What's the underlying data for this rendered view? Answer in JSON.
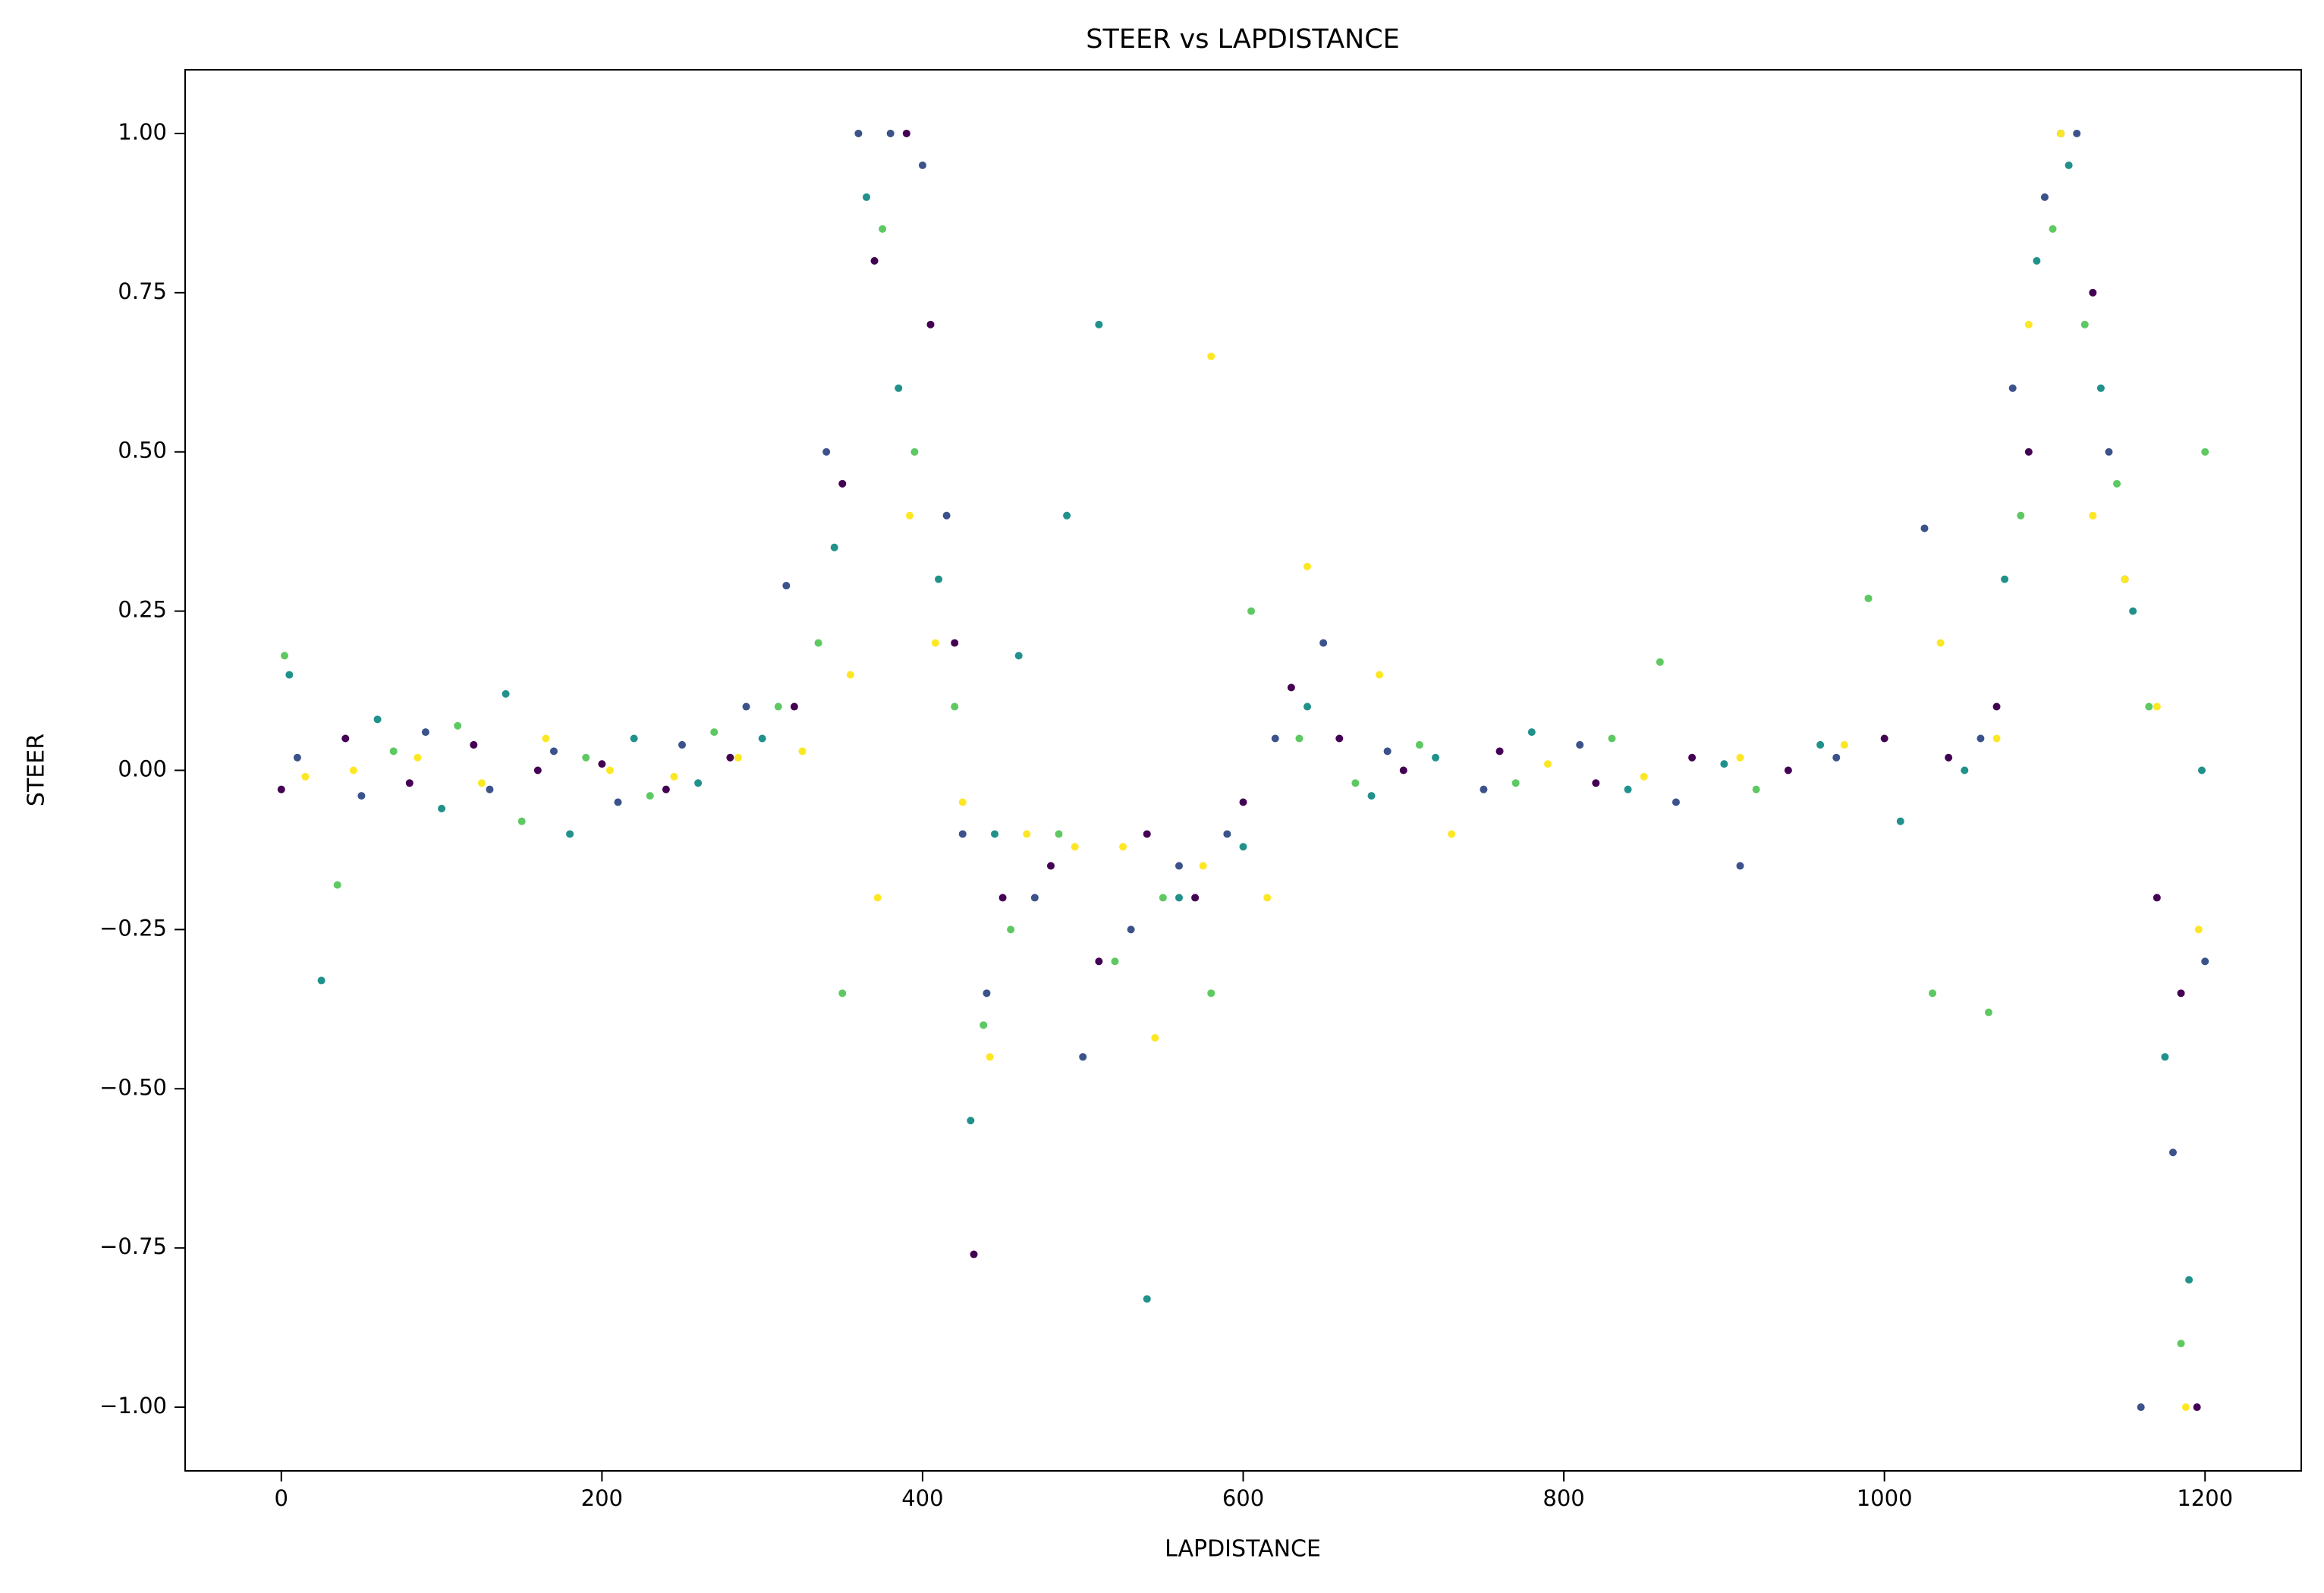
{
  "chart_data": {
    "type": "scatter",
    "title": "STEER vs LAPDISTANCE",
    "xlabel": "LAPDISTANCE",
    "ylabel": "STEER",
    "xlim": [
      -60,
      1260
    ],
    "ylim": [
      -1.1,
      1.1
    ],
    "xticks": [
      0,
      200,
      400,
      600,
      800,
      1000,
      1200
    ],
    "yticks": [
      {
        "value": -1,
        "label": "−1.00"
      },
      {
        "value": -0.75,
        "label": "−0.75"
      },
      {
        "value": -0.5,
        "label": "−0.50"
      },
      {
        "value": -0.25,
        "label": "−0.25"
      },
      {
        "value": 0,
        "label": "0.00"
      },
      {
        "value": 0.25,
        "label": "0.25"
      },
      {
        "value": 0.5,
        "label": "0.50"
      },
      {
        "value": 0.75,
        "label": "0.75"
      },
      {
        "value": 1,
        "label": "1.00"
      }
    ],
    "grid": false,
    "series": [
      {
        "color": "#440154",
        "x": [
          0,
          40,
          80,
          120,
          160,
          200,
          240,
          280,
          320,
          350,
          370,
          390,
          405,
          420,
          432,
          450,
          480,
          510,
          540,
          570,
          600,
          630,
          660,
          700,
          760,
          820,
          880,
          940,
          1000,
          1040,
          1070,
          1090,
          1110,
          1130,
          1150,
          1170,
          1185,
          1195
        ],
        "values": [
          -0.03,
          0.05,
          -0.02,
          0.04,
          0.0,
          0.01,
          -0.03,
          0.02,
          0.1,
          0.45,
          0.8,
          1.0,
          0.7,
          0.2,
          -0.76,
          -0.2,
          -0.15,
          -0.3,
          -0.1,
          -0.2,
          -0.05,
          0.13,
          0.05,
          0.0,
          0.03,
          -0.02,
          0.02,
          0.0,
          0.05,
          0.02,
          0.1,
          0.5,
          1.0,
          0.75,
          0.3,
          -0.2,
          -0.35,
          -1.0
        ]
      },
      {
        "color": "#3b528b",
        "x": [
          10,
          50,
          90,
          130,
          170,
          210,
          250,
          290,
          315,
          340,
          360,
          380,
          400,
          415,
          425,
          440,
          470,
          500,
          530,
          560,
          590,
          620,
          650,
          690,
          750,
          810,
          870,
          910,
          970,
          1025,
          1060,
          1080,
          1100,
          1120,
          1140,
          1160,
          1180,
          1200
        ],
        "values": [
          0.02,
          -0.04,
          0.06,
          -0.03,
          0.03,
          -0.05,
          0.04,
          0.1,
          0.29,
          0.5,
          1.0,
          1.0,
          0.95,
          0.4,
          -0.1,
          -0.35,
          -0.2,
          -0.45,
          -0.25,
          -0.15,
          -0.1,
          0.05,
          0.2,
          0.03,
          -0.03,
          0.04,
          -0.05,
          -0.15,
          0.02,
          0.38,
          0.05,
          0.6,
          0.9,
          1.0,
          0.5,
          -1.0,
          -0.6,
          -0.3
        ]
      },
      {
        "color": "#21918c",
        "x": [
          5,
          25,
          60,
          100,
          140,
          180,
          220,
          260,
          300,
          345,
          365,
          385,
          410,
          430,
          445,
          460,
          490,
          510,
          540,
          560,
          600,
          640,
          680,
          720,
          780,
          840,
          900,
          960,
          1010,
          1050,
          1075,
          1095,
          1115,
          1135,
          1155,
          1175,
          1190,
          1198
        ],
        "values": [
          0.15,
          -0.33,
          0.08,
          -0.06,
          0.12,
          -0.1,
          0.05,
          -0.02,
          0.05,
          0.35,
          0.9,
          0.6,
          0.3,
          -0.55,
          -0.1,
          0.18,
          0.4,
          0.7,
          -0.83,
          -0.2,
          -0.12,
          0.1,
          -0.04,
          0.02,
          0.06,
          -0.03,
          0.01,
          0.04,
          -0.08,
          0.0,
          0.3,
          0.8,
          0.95,
          0.6,
          0.25,
          -0.45,
          -0.8,
          0.0
        ]
      },
      {
        "color": "#5ec962",
        "x": [
          2,
          35,
          70,
          110,
          150,
          190,
          230,
          270,
          310,
          335,
          350,
          375,
          395,
          420,
          438,
          455,
          485,
          520,
          550,
          580,
          605,
          635,
          670,
          710,
          770,
          830,
          860,
          920,
          990,
          1030,
          1065,
          1085,
          1105,
          1125,
          1145,
          1165,
          1185,
          1200
        ],
        "values": [
          0.18,
          -0.18,
          0.03,
          0.07,
          -0.08,
          0.02,
          -0.04,
          0.06,
          0.1,
          0.2,
          -0.35,
          0.85,
          0.5,
          0.1,
          -0.4,
          -0.25,
          -0.1,
          -0.3,
          -0.2,
          -0.35,
          0.25,
          0.05,
          -0.02,
          0.04,
          -0.02,
          0.05,
          0.17,
          -0.03,
          0.27,
          -0.35,
          -0.38,
          0.4,
          0.85,
          0.7,
          0.45,
          0.1,
          -0.9,
          0.5
        ]
      },
      {
        "color": "#fde725",
        "x": [
          15,
          45,
          85,
          125,
          165,
          205,
          245,
          285,
          325,
          355,
          372,
          392,
          408,
          425,
          442,
          465,
          495,
          525,
          545,
          575,
          580,
          615,
          640,
          685,
          730,
          790,
          850,
          910,
          975,
          1035,
          1070,
          1090,
          1110,
          1130,
          1150,
          1170,
          1188,
          1196
        ],
        "values": [
          -0.01,
          0.0,
          0.02,
          -0.02,
          0.05,
          0.0,
          -0.01,
          0.02,
          0.03,
          0.15,
          -0.2,
          0.4,
          0.2,
          -0.05,
          -0.45,
          -0.1,
          -0.12,
          -0.12,
          -0.42,
          -0.15,
          0.65,
          -0.2,
          0.32,
          0.15,
          -0.1,
          0.01,
          -0.01,
          0.02,
          0.04,
          0.2,
          0.05,
          0.7,
          1.0,
          0.4,
          0.3,
          0.1,
          -1.0,
          -0.25
        ]
      }
    ]
  }
}
